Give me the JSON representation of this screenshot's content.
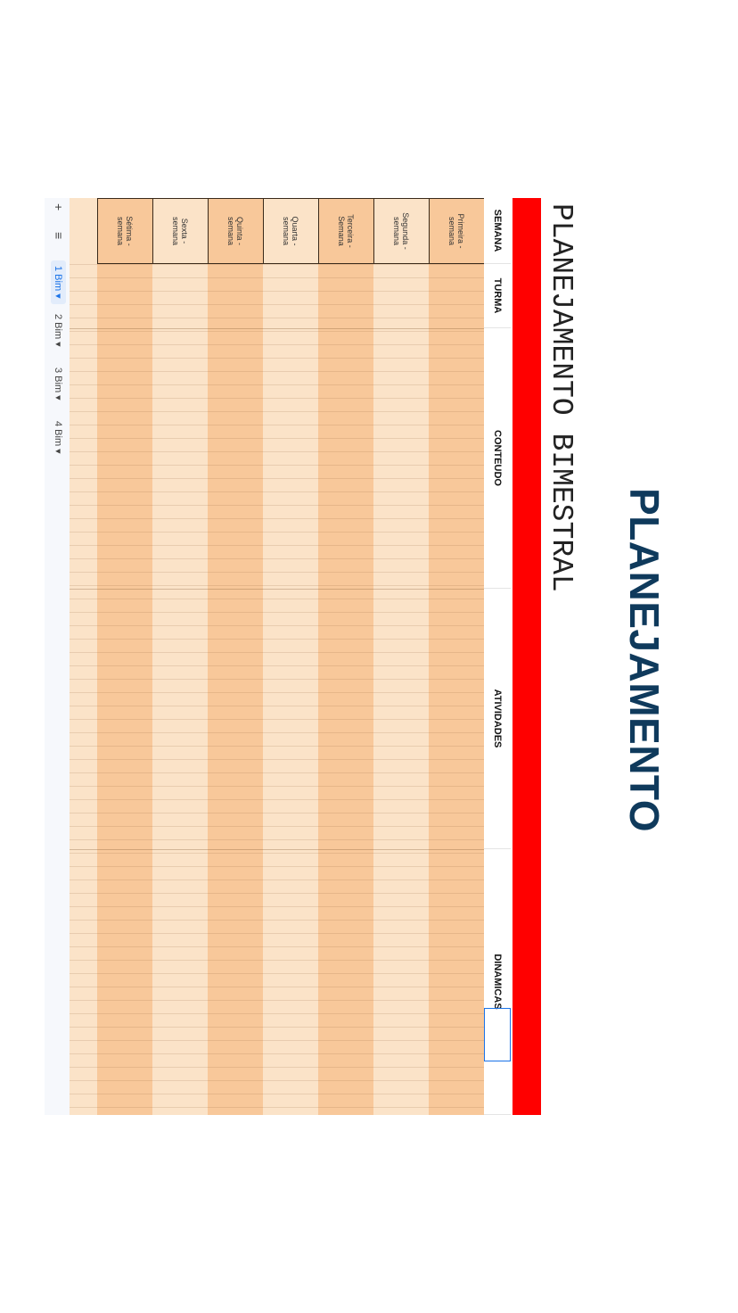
{
  "header": {
    "title": "PLANEJAMENTO",
    "subtitle": "PLANEJAMENTO BIMESTRAL"
  },
  "table": {
    "headers": [
      "SEMANA",
      "TURMA",
      "CONTEUDO",
      "ATIVIDADES",
      "DINAMICAS"
    ],
    "rows": [
      [
        "Primeira - semana"
      ],
      [
        "Segunda - semana"
      ],
      [
        "Terceira - Semana"
      ],
      [
        "Quarta - semana"
      ],
      [
        "Quinta - semana"
      ],
      [
        "Sexta - semana"
      ],
      [
        "Sétima - semana"
      ]
    ]
  },
  "tabs": {
    "icons": [
      "+",
      "≡"
    ],
    "sheets": [
      "1 Bim ▾",
      "2 Bim ▾",
      "3 Bim ▾",
      "4 Bim ▾"
    ]
  }
}
